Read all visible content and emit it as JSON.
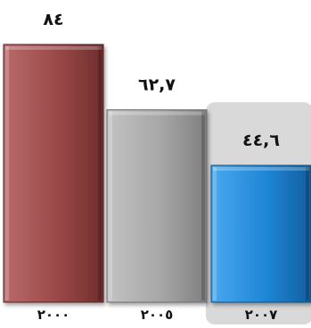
{
  "chart_data": {
    "type": "bar",
    "categories": [
      "٢٠٠٠",
      "٢٠٠٥",
      "٢٠٠٧"
    ],
    "values": [
      84,
      62.7,
      44.6
    ],
    "value_labels": [
      "٨٤",
      "٦٢,٧",
      "٤٤,٦"
    ],
    "highlighted_category": "٢٠٠٧",
    "title": "",
    "xlabel": "",
    "ylabel": "",
    "ylim": [
      0,
      84
    ],
    "grid": false,
    "legend": "none",
    "colors": {
      "bars": [
        "#9a4a4a",
        "#a9a9a9",
        "#1f86d6"
      ],
      "highlight_panel": "#d9d9d9"
    }
  }
}
